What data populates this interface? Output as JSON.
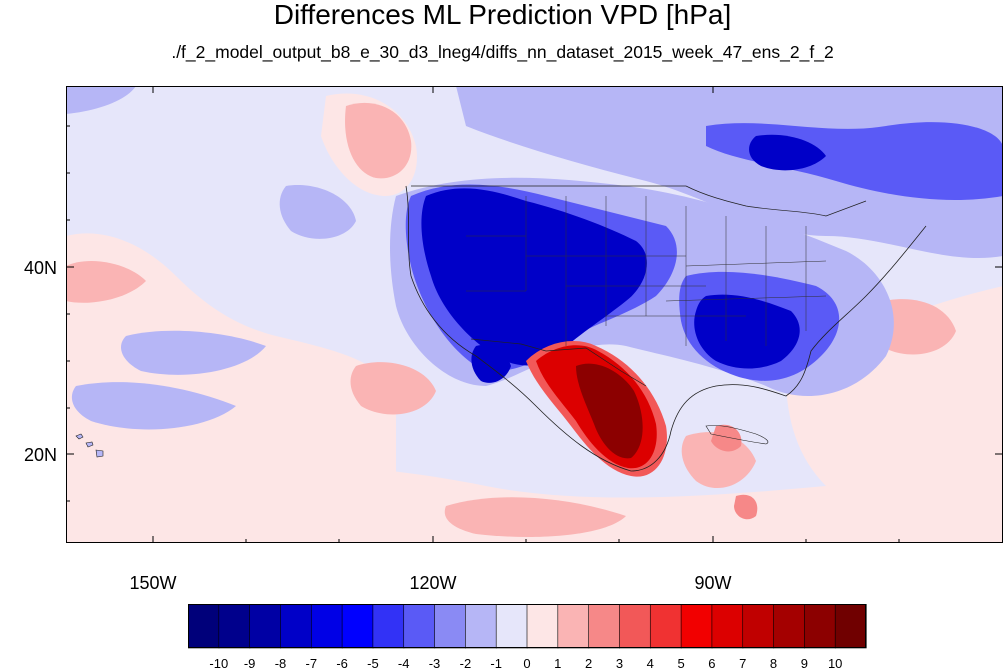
{
  "figure": {
    "title": "Differences ML Prediction VPD [hPa]",
    "subtitle": "./f_2_model_output_b8_e_30_d3_lneg4/diffs_nn_dataset_2015_week_47_ens_2_f_2"
  },
  "axes": {
    "lat_labels": [
      "40N",
      "20N"
    ],
    "lon_labels": [
      "150W",
      "120W",
      "90W"
    ]
  },
  "colorbar": {
    "labels": [
      "-10",
      "-9",
      "-8",
      "-7",
      "-6",
      "-5",
      "-4",
      "-3",
      "-2",
      "-1",
      "0",
      "1",
      "2",
      "3",
      "4",
      "5",
      "6",
      "7",
      "8",
      "9",
      "10"
    ],
    "colors": [
      "#00007a",
      "#00008c",
      "#0000a4",
      "#0000c8",
      "#0000e6",
      "#0000ff",
      "#3232f6",
      "#5a5af6",
      "#8a8af4",
      "#b6b6f6",
      "#e6e6fa",
      "#fde6e6",
      "#fab4b4",
      "#f68888",
      "#f25858",
      "#f03232",
      "#f20000",
      "#dc0000",
      "#c00000",
      "#a40000",
      "#8c0000",
      "#700000"
    ]
  },
  "palette": {
    "background": "#e6e6fa",
    "light_pink": "#fde6e6",
    "pink": "#fab4b4",
    "blue_light": "#b6b6f6",
    "blue_mid": "#5a5af6",
    "blue_dark": "#0000c8",
    "red_dark": "#8c0000",
    "red": "#dc0000"
  }
}
